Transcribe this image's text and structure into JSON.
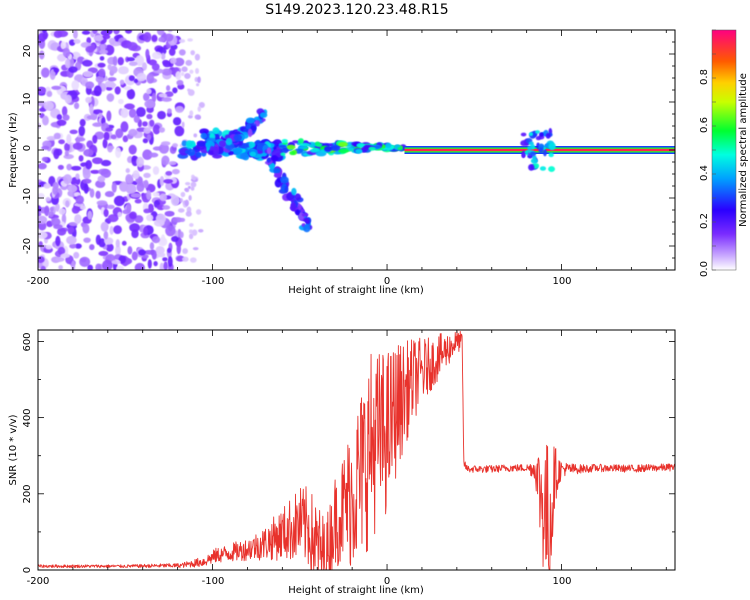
{
  "title": "S149.2023.120.23.48.R15",
  "chart_data": [
    {
      "type": "heatmap",
      "xlabel": "Height of straight line (km)",
      "ylabel": "Frequency (Hz)",
      "xlim": [
        -200,
        165
      ],
      "ylim": [
        -25,
        25
      ],
      "xticks": [
        "-200",
        "-100",
        "0",
        "100"
      ],
      "yticks": [
        "-20",
        "-10",
        "0",
        "10",
        "20"
      ],
      "grid": false,
      "colorbar": {
        "label": "Normalized spectral amplitude",
        "range": [
          0,
          1
        ],
        "ticks": [
          "0.0",
          "0.2",
          "0.4",
          "0.6",
          "0.8"
        ],
        "colormap": [
          "#ffffff",
          "#b37bff",
          "#5a00ff",
          "#0000ff",
          "#00ffff",
          "#00ff00",
          "#ffff00",
          "#ff8000",
          "#ff0080"
        ]
      },
      "features": [
        {
          "region": "noise",
          "x_range": [
            -200,
            -118
          ],
          "freq_range": [
            -25,
            25
          ],
          "amplitude": 0.1
        },
        {
          "region": "emerging signal",
          "x_range": [
            -118,
            -60
          ],
          "freq_center": 0,
          "amplitude": 0.3
        },
        {
          "region": "rising branch",
          "from": [
            -100,
            -1
          ],
          "to": [
            -70,
            7
          ],
          "amplitude": 0.35
        },
        {
          "region": "falling branch",
          "from": [
            -70,
            0
          ],
          "to": [
            -45,
            -16
          ],
          "amplitude": 0.25
        },
        {
          "region": "converging signal",
          "x_range": [
            -60,
            10
          ],
          "freq_center": 0.5,
          "amplitude": 0.55
        },
        {
          "region": "clean tone",
          "x_range": [
            10,
            165
          ],
          "freq_center": 0,
          "amplitude": 0.95
        },
        {
          "region": "disturbance",
          "x_range": [
            78,
            95
          ],
          "freq_range": [
            -4,
            4
          ],
          "amplitude": 0.3
        }
      ]
    },
    {
      "type": "line",
      "xlabel": "Height of straight line (km)",
      "ylabel": "SNR (10 * v/v)",
      "xlim": [
        -200,
        165
      ],
      "ylim": [
        0,
        630
      ],
      "xticks": [
        "-200",
        "-100",
        "0",
        "100"
      ],
      "yticks": [
        "0",
        "200",
        "400",
        "600"
      ],
      "grid": false,
      "series": [
        {
          "color": "#e8322c",
          "x": [
            -200,
            -150,
            -118,
            -105,
            -98,
            -90,
            -80,
            -70,
            -60,
            -50,
            -45,
            -40,
            -35,
            -30,
            -25,
            -20,
            -15,
            -10,
            -5,
            0,
            5,
            10,
            15,
            20,
            25,
            30,
            35,
            40,
            43,
            44,
            46,
            50,
            60,
            70,
            80,
            85,
            88,
            90,
            92,
            94,
            96,
            100,
            110,
            120,
            140,
            165
          ],
          "values": [
            10,
            10,
            12,
            22,
            38,
            45,
            55,
            70,
            95,
            120,
            110,
            60,
            35,
            130,
            160,
            200,
            250,
            320,
            350,
            360,
            420,
            460,
            500,
            520,
            540,
            560,
            580,
            600,
            600,
            280,
            265,
            265,
            265,
            268,
            268,
            265,
            200,
            170,
            120,
            160,
            250,
            265,
            265,
            268,
            266,
            270
          ],
          "spread": [
            4,
            4,
            6,
            14,
            20,
            24,
            30,
            45,
            70,
            100,
            110,
            120,
            100,
            120,
            150,
            200,
            230,
            260,
            230,
            220,
            180,
            140,
            110,
            90,
            70,
            60,
            45,
            30,
            25,
            10,
            10,
            10,
            10,
            10,
            10,
            30,
            150,
            200,
            220,
            200,
            80,
            20,
            12,
            10,
            10,
            10
          ]
        }
      ]
    }
  ]
}
